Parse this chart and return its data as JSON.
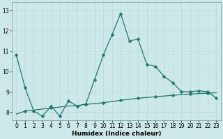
{
  "xlabel": "Humidex (Indice chaleur)",
  "background_color": "#cce8e8",
  "grid_color_major": "#b8d4d4",
  "grid_color_minor": "#d4e8e8",
  "line_color": "#1a7a6e",
  "x_values": [
    0,
    1,
    2,
    3,
    4,
    5,
    6,
    7,
    8,
    9,
    10,
    11,
    12,
    13,
    14,
    15,
    16,
    17,
    18,
    19,
    20,
    21,
    22,
    23
  ],
  "line1_y": [
    10.8,
    9.2,
    8.05,
    7.8,
    8.3,
    7.8,
    8.55,
    8.3,
    8.4,
    9.6,
    10.8,
    11.8,
    12.85,
    11.5,
    11.6,
    10.35,
    10.25,
    9.75,
    9.45,
    9.0,
    9.0,
    9.05,
    9.0,
    8.7
  ],
  "line2_y": [
    7.9,
    8.05,
    8.1,
    8.15,
    8.2,
    8.25,
    8.3,
    8.32,
    8.38,
    8.42,
    8.46,
    8.52,
    8.58,
    8.63,
    8.68,
    8.72,
    8.76,
    8.79,
    8.83,
    8.86,
    8.89,
    8.91,
    8.93,
    8.95
  ],
  "line2_markers_x": [
    1,
    4,
    8,
    10,
    12,
    14,
    16,
    18,
    20,
    22
  ],
  "line2_markers_y": [
    8.05,
    8.2,
    8.38,
    8.46,
    8.58,
    8.68,
    8.76,
    8.83,
    8.89,
    8.93
  ],
  "ylim": [
    7.6,
    13.4
  ],
  "xlim": [
    -0.5,
    23.5
  ],
  "yticks": [
    8,
    9,
    10,
    11,
    12,
    13
  ],
  "xticks": [
    0,
    1,
    2,
    3,
    4,
    5,
    6,
    7,
    8,
    9,
    10,
    11,
    12,
    13,
    14,
    15,
    16,
    17,
    18,
    19,
    20,
    21,
    22,
    23
  ],
  "tick_fontsize": 5.5,
  "xlabel_fontsize": 6.5,
  "marker_size": 2.5,
  "linewidth": 0.9
}
